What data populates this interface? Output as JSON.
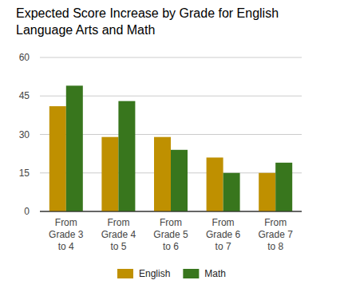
{
  "chart_data": {
    "type": "bar",
    "title": "Expected Score Increase by Grade for English Language Arts and Math",
    "categories": [
      "From Grade 3 to 4",
      "From Grade 4 to 5",
      "From Grade 5 to 6",
      "From Grade 6 to 7",
      "From Grade 7 to 8"
    ],
    "series": [
      {
        "name": "English",
        "color": "#bf9000",
        "values": [
          41,
          29,
          29,
          21,
          15
        ]
      },
      {
        "name": "Math",
        "color": "#38761d",
        "values": [
          49,
          43,
          24,
          15,
          19
        ]
      }
    ],
    "ylim": [
      0,
      60
    ],
    "yticks": [
      0,
      15,
      30,
      45,
      60
    ],
    "grid": true,
    "legend": "bottom"
  }
}
